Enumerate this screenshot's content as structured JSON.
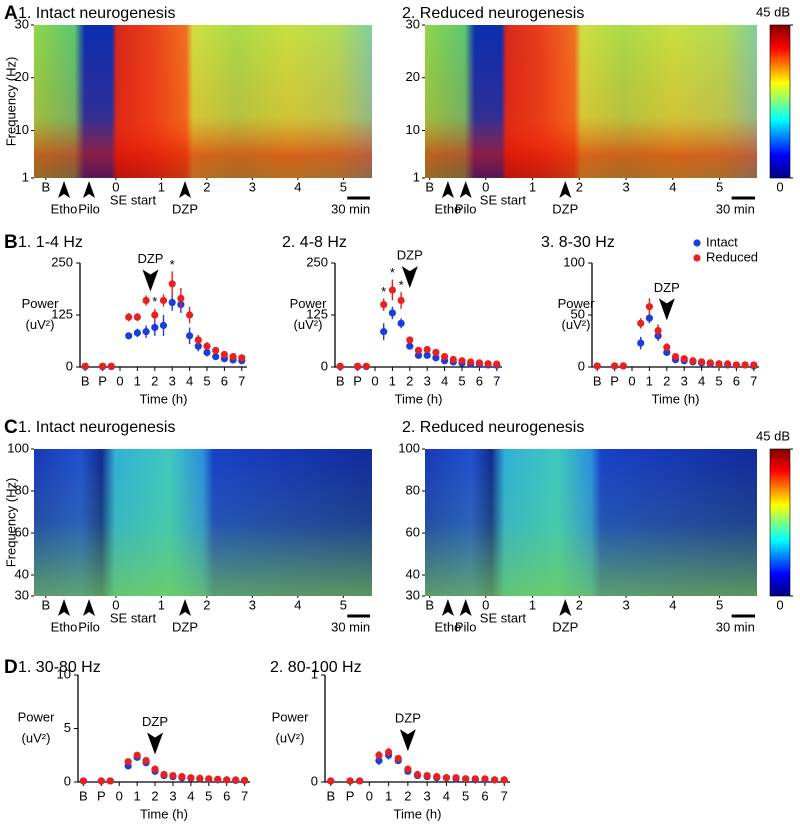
{
  "panel_labels": [
    "A",
    "B",
    "C",
    "D"
  ],
  "chart_data": [
    {
      "type": "spectrogram",
      "title": "1. Intact neurogenesis",
      "y_label": "Frequency (Hz)",
      "ylim": [
        1,
        30
      ],
      "yticks": [
        1,
        10,
        20,
        30
      ],
      "xlim": [
        -1.8,
        5.63
      ],
      "xticks": [
        {
          "value": -1.54,
          "label": "B"
        },
        0,
        1,
        2,
        3,
        4,
        5
      ],
      "annotations": [
        {
          "text": "Etho",
          "x": -1.14
        },
        {
          "text": "Pilo",
          "x": -0.59
        },
        {
          "text": "DZP",
          "x": 1.52
        }
      ],
      "start_label": "SE start",
      "scale_bar": {
        "label": "30 min",
        "length": 0.5
      }
    },
    {
      "type": "spectrogram",
      "title": "2. Reduced neurogenesis",
      "ylim": [
        1,
        30
      ],
      "yticks": [
        1,
        10,
        20,
        30
      ],
      "xlim": [
        -1.3,
        5.8
      ],
      "xticks": [
        {
          "value": -1.2,
          "label": "B"
        },
        0,
        1,
        2,
        3,
        4,
        5
      ],
      "annotations": [
        {
          "text": "Etho",
          "x": -0.81
        },
        {
          "text": "Pilo",
          "x": -0.43
        },
        {
          "text": "DZP",
          "x": 1.7
        }
      ],
      "start_label": "SE start",
      "scale_bar": {
        "label": "30 min",
        "length": 0.5
      },
      "colorbar": {
        "clim": [
          0,
          45
        ],
        "ticks": [
          {
            "value": 45,
            "label": "45 dB"
          },
          0
        ]
      }
    },
    {
      "type": "errorbar",
      "title": "1. 1-4 Hz",
      "y_label": [
        "Power",
        "(uV²)"
      ],
      "x_label": "Time (h)",
      "xlim": [
        -2.3,
        7.3
      ],
      "ylim": [
        0,
        250
      ],
      "yticks": [
        0,
        125,
        250
      ],
      "xticks": [
        {
          "value": -2,
          "label": "B"
        },
        {
          "value": -1,
          "label": "P"
        },
        0,
        1,
        2,
        3,
        4,
        5,
        6,
        7
      ],
      "x": [
        -2,
        -1,
        -0.5,
        0.5,
        1,
        1.5,
        2,
        2.5,
        3,
        3.5,
        4,
        4.5,
        5,
        5.5,
        6,
        6.5,
        7
      ],
      "series": [
        {
          "color": "#1b3ddc",
          "values": [
            1,
            1,
            1,
            75,
            82,
            85,
            95,
            100,
            155,
            150,
            75,
            50,
            35,
            25,
            20,
            17,
            15
          ],
          "errors": [
            1,
            1,
            1,
            8,
            10,
            15,
            20,
            25,
            20,
            20,
            20,
            12,
            10,
            8,
            6,
            5,
            5
          ]
        },
        {
          "color": "#e8211f",
          "values": [
            2,
            2,
            2,
            120,
            120,
            160,
            125,
            160,
            200,
            165,
            125,
            65,
            50,
            40,
            30,
            25,
            22
          ],
          "errors": [
            2,
            2,
            2,
            10,
            10,
            12,
            15,
            15,
            30,
            25,
            20,
            12,
            10,
            8,
            7,
            6,
            5
          ]
        }
      ],
      "annotations": [
        {
          "text": "DZP",
          "x": 1.75,
          "arrow": true
        },
        {
          "text": "*",
          "x": 2
        },
        {
          "text": "*",
          "x": 3
        }
      ]
    },
    {
      "type": "errorbar",
      "title": "2. 4-8 Hz",
      "y_label": [
        "Power",
        "(uV²)"
      ],
      "x_label": "Time (h)",
      "xlim": [
        -2.3,
        7.3
      ],
      "ylim": [
        0,
        250
      ],
      "yticks": [
        0,
        125,
        250
      ],
      "xticks": [
        {
          "value": -2,
          "label": "B"
        },
        {
          "value": -1,
          "label": "P"
        },
        0,
        1,
        2,
        3,
        4,
        5,
        6,
        7
      ],
      "x": [
        -2,
        -1,
        -0.5,
        0.5,
        1,
        1.5,
        2,
        2.5,
        3,
        3.5,
        4,
        4.5,
        5,
        5.5,
        6,
        6.5,
        7
      ],
      "series": [
        {
          "color": "#1b3ddc",
          "values": [
            1,
            1,
            1,
            85,
            130,
            105,
            50,
            28,
            28,
            22,
            15,
            12,
            9,
            7,
            6,
            5,
            4
          ],
          "errors": [
            1,
            1,
            1,
            20,
            15,
            12,
            8,
            4,
            4,
            3,
            3,
            2,
            2,
            2,
            2,
            2,
            2
          ]
        },
        {
          "color": "#e8211f",
          "values": [
            2,
            2,
            2,
            150,
            185,
            160,
            65,
            40,
            42,
            35,
            25,
            18,
            15,
            12,
            10,
            8,
            7
          ],
          "errors": [
            2,
            2,
            2,
            15,
            25,
            20,
            8,
            5,
            5,
            5,
            4,
            3,
            3,
            2,
            2,
            2,
            2
          ]
        }
      ],
      "annotations": [
        {
          "text": "DZP",
          "x": 2,
          "arrow": true
        },
        {
          "text": "*",
          "x": 0.5
        },
        {
          "text": "*",
          "x": 1
        },
        {
          "text": "*",
          "x": 1.5
        }
      ]
    },
    {
      "type": "errorbar",
      "title": "3. 8-30 Hz",
      "y_label": [
        "Power",
        "(uV²)"
      ],
      "x_label": "Time (h)",
      "xlim": [
        -2.3,
        7.3
      ],
      "ylim": [
        0,
        100
      ],
      "yticks": [
        0,
        50,
        100
      ],
      "xticks": [
        {
          "value": -2,
          "label": "B"
        },
        {
          "value": -1,
          "label": "P"
        },
        0,
        1,
        2,
        3,
        4,
        5,
        6,
        7
      ],
      "x": [
        -2,
        -1,
        -0.5,
        0.5,
        1,
        1.5,
        2,
        2.5,
        3,
        3.5,
        4,
        4.5,
        5,
        5.5,
        6,
        6.5,
        7
      ],
      "legend": "upper right",
      "series": [
        {
          "name": "Intact",
          "color": "#1b3ddc",
          "values": [
            1,
            1,
            1,
            23,
            47,
            30,
            14,
            7,
            6,
            5,
            4,
            3,
            3,
            2,
            2,
            2,
            1
          ],
          "errors": [
            1,
            1,
            1,
            6,
            5,
            5,
            3,
            2,
            1,
            1,
            1,
            1,
            1,
            1,
            1,
            1,
            1
          ]
        },
        {
          "name": "Reduced",
          "color": "#e8211f",
          "values": [
            1,
            1,
            1,
            42,
            58,
            35,
            19,
            10,
            8,
            6,
            5,
            4,
            3,
            3,
            2,
            2,
            2
          ],
          "errors": [
            1,
            1,
            1,
            5,
            8,
            6,
            4,
            2,
            2,
            1,
            1,
            1,
            1,
            1,
            1,
            1,
            1
          ]
        }
      ],
      "annotations": [
        {
          "text": "DZP",
          "x": 2,
          "arrow": true
        }
      ]
    },
    {
      "type": "spectrogram",
      "title": "1. Intact neurogenesis",
      "y_label": "Frequency (Hz)",
      "ylim": [
        30,
        100
      ],
      "yticks": [
        30,
        40,
        60,
        80,
        100
      ],
      "xlim": [
        -1.8,
        5.63
      ],
      "xticks": [
        {
          "value": -1.54,
          "label": "B"
        },
        0,
        1,
        2,
        3,
        4,
        5
      ],
      "annotations": [
        {
          "text": "Etho",
          "x": -1.14
        },
        {
          "text": "Pilo",
          "x": -0.59
        },
        {
          "text": "DZP",
          "x": 1.52
        }
      ],
      "start_label": "SE start",
      "scale_bar": {
        "label": "30 min",
        "length": 0.5
      }
    },
    {
      "type": "spectrogram",
      "title": "2. Reduced neurogenesis",
      "ylim": [
        30,
        100
      ],
      "yticks": [
        30,
        40,
        60,
        80,
        100
      ],
      "xlim": [
        -1.3,
        5.8
      ],
      "xticks": [
        {
          "value": -1.2,
          "label": "B"
        },
        0,
        1,
        2,
        3,
        4,
        5
      ],
      "annotations": [
        {
          "text": "Etho",
          "x": -0.81
        },
        {
          "text": "Pilo",
          "x": -0.43
        },
        {
          "text": "DZP",
          "x": 1.7
        }
      ],
      "start_label": "SE start",
      "scale_bar": {
        "label": "30 min",
        "length": 0.5
      },
      "colorbar": {
        "clim": [
          0,
          45
        ],
        "ticks": [
          {
            "value": 45,
            "label": "45 dB"
          },
          0
        ]
      }
    },
    {
      "type": "errorbar",
      "title": "1. 30-80 Hz",
      "y_label": [
        "Power",
        "(uV²)"
      ],
      "x_label": "Time (h)",
      "xlim": [
        -2.3,
        7.3
      ],
      "ylim": [
        0,
        10
      ],
      "yticks": [
        0,
        5,
        10
      ],
      "xticks": [
        {
          "value": -2,
          "label": "B"
        },
        {
          "value": -1,
          "label": "P"
        },
        0,
        1,
        2,
        3,
        4,
        5,
        6,
        7
      ],
      "x": [
        -2,
        -1,
        -0.5,
        0.5,
        1,
        1.5,
        2,
        2.5,
        3,
        3.5,
        4,
        4.5,
        5,
        5.5,
        6,
        6.5,
        7
      ],
      "series": [
        {
          "color": "#1b3ddc",
          "values": [
            0.1,
            0.1,
            0.1,
            1.5,
            2.3,
            1.8,
            1.0,
            0.6,
            0.5,
            0.4,
            0.35,
            0.3,
            0.25,
            0.2,
            0.2,
            0.15,
            0.15
          ],
          "errors": [
            0.05,
            0.05,
            0.05,
            0.3,
            0.3,
            0.2,
            0.2,
            0.1,
            0.1,
            0.1,
            0.05,
            0.05,
            0.05,
            0.05,
            0.05,
            0.05,
            0.05
          ]
        },
        {
          "color": "#e8211f",
          "values": [
            0.1,
            0.1,
            0.1,
            1.9,
            2.5,
            2.0,
            1.2,
            0.7,
            0.6,
            0.5,
            0.4,
            0.35,
            0.3,
            0.25,
            0.2,
            0.2,
            0.15
          ],
          "errors": [
            0.05,
            0.05,
            0.05,
            0.3,
            0.3,
            0.2,
            0.2,
            0.1,
            0.1,
            0.1,
            0.05,
            0.05,
            0.05,
            0.05,
            0.05,
            0.05,
            0.05
          ]
        }
      ],
      "annotations": [
        {
          "text": "DZP",
          "x": 2,
          "arrow": true
        }
      ]
    },
    {
      "type": "errorbar",
      "title": "2. 80-100 Hz",
      "y_label": [
        "Power",
        "(uV²)"
      ],
      "x_label": "Time (h)",
      "xlim": [
        -2.3,
        7.3
      ],
      "ylim": [
        0,
        1
      ],
      "yticks": [
        0,
        1
      ],
      "xticks": [
        {
          "value": -2,
          "label": "B"
        },
        {
          "value": -1,
          "label": "P"
        },
        0,
        1,
        2,
        3,
        4,
        5,
        6,
        7
      ],
      "x": [
        -2,
        -1,
        -0.5,
        0.5,
        1,
        1.5,
        2,
        2.5,
        3,
        3.5,
        4,
        4.5,
        5,
        5.5,
        6,
        6.5,
        7
      ],
      "series": [
        {
          "color": "#1b3ddc",
          "values": [
            0.01,
            0.01,
            0.01,
            0.2,
            0.25,
            0.2,
            0.1,
            0.06,
            0.05,
            0.04,
            0.04,
            0.03,
            0.03,
            0.02,
            0.02,
            0.02,
            0.02
          ],
          "errors": [
            0.005,
            0.005,
            0.005,
            0.04,
            0.04,
            0.03,
            0.02,
            0.01,
            0.01,
            0.01,
            0.01,
            0.005,
            0.005,
            0.005,
            0.005,
            0.005,
            0.005
          ]
        },
        {
          "color": "#e8211f",
          "values": [
            0.01,
            0.01,
            0.01,
            0.25,
            0.28,
            0.22,
            0.12,
            0.07,
            0.06,
            0.05,
            0.04,
            0.04,
            0.03,
            0.03,
            0.03,
            0.02,
            0.02
          ],
          "errors": [
            0.005,
            0.005,
            0.005,
            0.04,
            0.04,
            0.03,
            0.02,
            0.01,
            0.01,
            0.01,
            0.01,
            0.005,
            0.005,
            0.005,
            0.005,
            0.005,
            0.005
          ]
        }
      ],
      "annotations": [
        {
          "text": "DZP",
          "x": 2,
          "arrow": true
        }
      ]
    }
  ]
}
